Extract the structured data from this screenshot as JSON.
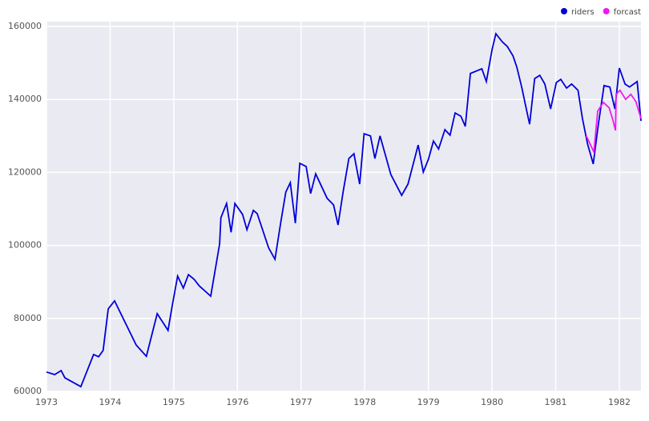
{
  "chart_data": {
    "type": "line",
    "xlim": [
      1973,
      1982.34
    ],
    "ylim": [
      60000,
      160000
    ],
    "xticks": [
      1973,
      1974,
      1975,
      1976,
      1977,
      1978,
      1979,
      1980,
      1981,
      1982
    ],
    "yticks": [
      60000,
      80000,
      100000,
      120000,
      140000,
      160000
    ],
    "grid": true,
    "legend": "top-right",
    "series": [
      {
        "name": "riders",
        "color": "#0000d8",
        "x": [
          1973.0,
          1973.13,
          1973.23,
          1973.29,
          1973.54,
          1973.74,
          1973.82,
          1973.89,
          1973.97,
          1974.07,
          1974.41,
          1974.57,
          1974.74,
          1974.91,
          1974.98,
          1975.06,
          1975.15,
          1975.23,
          1975.32,
          1975.4,
          1975.58,
          1975.72,
          1975.74,
          1975.83,
          1975.9,
          1975.96,
          1976.08,
          1976.15,
          1976.25,
          1976.31,
          1976.49,
          1976.59,
          1976.68,
          1976.76,
          1976.83,
          1976.91,
          1976.98,
          1977.08,
          1977.15,
          1977.23,
          1977.41,
          1977.51,
          1977.58,
          1977.66,
          1977.75,
          1977.83,
          1977.92,
          1977.99,
          1978.09,
          1978.16,
          1978.24,
          1978.41,
          1978.58,
          1978.68,
          1978.84,
          1978.92,
          1979.0,
          1979.08,
          1979.16,
          1979.26,
          1979.34,
          1979.42,
          1979.51,
          1979.58,
          1979.66,
          1979.84,
          1979.91,
          1980.0,
          1980.06,
          1980.16,
          1980.24,
          1980.33,
          1980.39,
          1980.47,
          1980.53,
          1980.59,
          1980.67,
          1980.75,
          1980.83,
          1980.92,
          1981.01,
          1981.08,
          1981.17,
          1981.25,
          1981.35,
          1981.42,
          1981.5,
          1981.59,
          1981.67,
          1981.76,
          1981.85,
          1981.93,
          1982.0,
          1982.09,
          1982.16,
          1982.28,
          1982.34
        ],
        "values": [
          65300,
          64600,
          65700,
          63700,
          61300,
          70100,
          69500,
          71200,
          82600,
          84800,
          72700,
          69600,
          81300,
          76700,
          83900,
          91600,
          88300,
          92000,
          90700,
          88900,
          86100,
          100400,
          107600,
          111500,
          103600,
          111500,
          108500,
          104300,
          109600,
          108700,
          99300,
          96200,
          106300,
          114600,
          117200,
          106100,
          122500,
          121600,
          114200,
          119600,
          112900,
          111100,
          105600,
          114600,
          123800,
          125100,
          116800,
          130600,
          130000,
          123800,
          130000,
          119400,
          113700,
          116800,
          127500,
          120100,
          123600,
          128600,
          126400,
          131700,
          130200,
          136300,
          135400,
          132600,
          147100,
          148400,
          144900,
          153600,
          158000,
          155800,
          154500,
          151900,
          148800,
          143100,
          138100,
          133200,
          145700,
          146600,
          144200,
          137400,
          144600,
          145500,
          143100,
          144200,
          142500,
          134800,
          127800,
          122300,
          133200,
          143800,
          143400,
          137400,
          148600,
          144200,
          143400,
          144900,
          134100
        ]
      },
      {
        "name": "forcast",
        "color": "#f018f0",
        "x": [
          1981.48,
          1981.6,
          1981.66,
          1981.75,
          1981.84,
          1981.9,
          1981.94,
          1981.95,
          1982.01,
          1982.1,
          1982.18,
          1982.26,
          1982.34
        ],
        "values": [
          130000,
          125600,
          136800,
          139200,
          137700,
          134300,
          131500,
          141400,
          142500,
          140000,
          141400,
          139400,
          134800
        ]
      }
    ]
  }
}
